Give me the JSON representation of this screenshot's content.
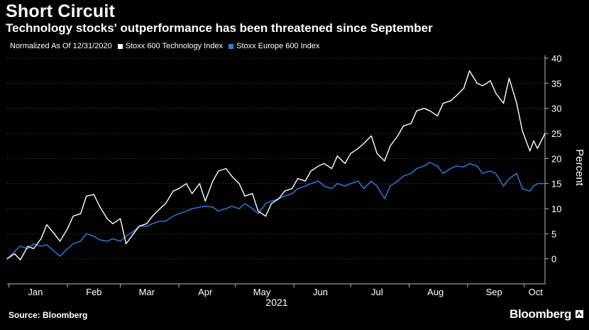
{
  "header": {
    "title": "Short Circuit",
    "subtitle": "Technology stocks' outperformance has been threatened since September"
  },
  "legend": {
    "note": "Normalized As Of 12/31/2020",
    "items": [
      {
        "label": "Stoxx 600 Technology Index",
        "color": "#ffffff"
      },
      {
        "label": "Stoxx Europe 600 Index",
        "color": "#2f7fe0"
      }
    ]
  },
  "footer": {
    "source": "Source: Bloomberg",
    "brand": "Bloomberg"
  },
  "chart_data": {
    "type": "line",
    "ylabel": "Percent",
    "xlabel": "2021",
    "x_tick_labels": [
      "Jan",
      "Feb",
      "Mar",
      "Apr",
      "May",
      "Jun",
      "Jul",
      "Aug",
      "Sep",
      "Oct"
    ],
    "y_ticks": [
      0,
      5,
      10,
      15,
      20,
      25,
      30,
      35,
      40
    ],
    "ylim": [
      -5,
      40
    ],
    "xlim": [
      "2020-12-31",
      "2021-10-12"
    ],
    "axis_side": "right",
    "grid": "horizontal dotted",
    "legend_position": "top-left",
    "series": [
      {
        "name": "Stoxx 600 Technology Index",
        "color": "#ffffff",
        "points": [
          [
            "2020-12-31",
            0
          ],
          [
            "2021-01-04",
            1
          ],
          [
            "2021-01-07",
            -0.2
          ],
          [
            "2021-01-11",
            2.5
          ],
          [
            "2021-01-14",
            2
          ],
          [
            "2021-01-18",
            4
          ],
          [
            "2021-01-21",
            6.8
          ],
          [
            "2021-01-25",
            5
          ],
          [
            "2021-01-28",
            3.5
          ],
          [
            "2021-02-01",
            6
          ],
          [
            "2021-02-04",
            8.5
          ],
          [
            "2021-02-08",
            9
          ],
          [
            "2021-02-11",
            12.5
          ],
          [
            "2021-02-15",
            12.8
          ],
          [
            "2021-02-18",
            10.5
          ],
          [
            "2021-02-22",
            8
          ],
          [
            "2021-02-25",
            7
          ],
          [
            "2021-03-01",
            8
          ],
          [
            "2021-03-04",
            3
          ],
          [
            "2021-03-08",
            5
          ],
          [
            "2021-03-11",
            6.5
          ],
          [
            "2021-03-15",
            7
          ],
          [
            "2021-03-18",
            8.5
          ],
          [
            "2021-03-22",
            10
          ],
          [
            "2021-03-25",
            11
          ],
          [
            "2021-03-29",
            13.5
          ],
          [
            "2021-04-01",
            14
          ],
          [
            "2021-04-05",
            15
          ],
          [
            "2021-04-08",
            13
          ],
          [
            "2021-04-12",
            15
          ],
          [
            "2021-04-15",
            11.5
          ],
          [
            "2021-04-19",
            15.5
          ],
          [
            "2021-04-22",
            17.5
          ],
          [
            "2021-04-26",
            18
          ],
          [
            "2021-04-29",
            16.5
          ],
          [
            "2021-05-03",
            15
          ],
          [
            "2021-05-06",
            12.5
          ],
          [
            "2021-05-10",
            13
          ],
          [
            "2021-05-13",
            9.5
          ],
          [
            "2021-05-17",
            8.5
          ],
          [
            "2021-05-20",
            11
          ],
          [
            "2021-05-24",
            12
          ],
          [
            "2021-05-27",
            13.5
          ],
          [
            "2021-05-31",
            14
          ],
          [
            "2021-06-03",
            16
          ],
          [
            "2021-06-07",
            15.5
          ],
          [
            "2021-06-10",
            17.5
          ],
          [
            "2021-06-14",
            18.5
          ],
          [
            "2021-06-17",
            19
          ],
          [
            "2021-06-21",
            18
          ],
          [
            "2021-06-24",
            20.5
          ],
          [
            "2021-06-28",
            19
          ],
          [
            "2021-07-01",
            21
          ],
          [
            "2021-07-05",
            22
          ],
          [
            "2021-07-08",
            23
          ],
          [
            "2021-07-12",
            24.5
          ],
          [
            "2021-07-15",
            21
          ],
          [
            "2021-07-19",
            19.5
          ],
          [
            "2021-07-22",
            22.5
          ],
          [
            "2021-07-26",
            24.5
          ],
          [
            "2021-07-29",
            26.5
          ],
          [
            "2021-08-02",
            27
          ],
          [
            "2021-08-05",
            29.5
          ],
          [
            "2021-08-09",
            30
          ],
          [
            "2021-08-12",
            29.5
          ],
          [
            "2021-08-16",
            28.5
          ],
          [
            "2021-08-19",
            31
          ],
          [
            "2021-08-23",
            31.5
          ],
          [
            "2021-08-26",
            32.5
          ],
          [
            "2021-08-30",
            34
          ],
          [
            "2021-09-02",
            37.5
          ],
          [
            "2021-09-06",
            35
          ],
          [
            "2021-09-09",
            34.5
          ],
          [
            "2021-09-13",
            35.5
          ],
          [
            "2021-09-16",
            33
          ],
          [
            "2021-09-20",
            31
          ],
          [
            "2021-09-23",
            36
          ],
          [
            "2021-09-27",
            31
          ],
          [
            "2021-09-30",
            25.5
          ],
          [
            "2021-10-04",
            21.5
          ],
          [
            "2021-10-06",
            23.5
          ],
          [
            "2021-10-08",
            22
          ],
          [
            "2021-10-12",
            25
          ]
        ]
      },
      {
        "name": "Stoxx Europe 600 Index",
        "color": "#2f7fe0",
        "points": [
          [
            "2020-12-31",
            0
          ],
          [
            "2021-01-04",
            1.5
          ],
          [
            "2021-01-07",
            2.5
          ],
          [
            "2021-01-11",
            2
          ],
          [
            "2021-01-14",
            3
          ],
          [
            "2021-01-18",
            2.5
          ],
          [
            "2021-01-21",
            2.8
          ],
          [
            "2021-01-25",
            1.5
          ],
          [
            "2021-01-28",
            0.5
          ],
          [
            "2021-02-01",
            2
          ],
          [
            "2021-02-04",
            3
          ],
          [
            "2021-02-08",
            3.5
          ],
          [
            "2021-02-11",
            5
          ],
          [
            "2021-02-15",
            4.5
          ],
          [
            "2021-02-18",
            3.8
          ],
          [
            "2021-02-22",
            3.5
          ],
          [
            "2021-02-25",
            4
          ],
          [
            "2021-03-01",
            3.5
          ],
          [
            "2021-03-04",
            4.5
          ],
          [
            "2021-03-08",
            5.5
          ],
          [
            "2021-03-11",
            6.5
          ],
          [
            "2021-03-15",
            6.5
          ],
          [
            "2021-03-18",
            7
          ],
          [
            "2021-03-22",
            7.5
          ],
          [
            "2021-03-25",
            7.5
          ],
          [
            "2021-03-29",
            8.5
          ],
          [
            "2021-04-01",
            9
          ],
          [
            "2021-04-05",
            9.5
          ],
          [
            "2021-04-08",
            10
          ],
          [
            "2021-04-12",
            10.3
          ],
          [
            "2021-04-15",
            10.5
          ],
          [
            "2021-04-19",
            10.3
          ],
          [
            "2021-04-22",
            9.5
          ],
          [
            "2021-04-26",
            10
          ],
          [
            "2021-04-29",
            10.5
          ],
          [
            "2021-05-03",
            10
          ],
          [
            "2021-05-06",
            11
          ],
          [
            "2021-05-10",
            10
          ],
          [
            "2021-05-13",
            9
          ],
          [
            "2021-05-17",
            11
          ],
          [
            "2021-05-20",
            11.5
          ],
          [
            "2021-05-24",
            12
          ],
          [
            "2021-05-27",
            12.5
          ],
          [
            "2021-05-31",
            13
          ],
          [
            "2021-06-03",
            14
          ],
          [
            "2021-06-07",
            14.5
          ],
          [
            "2021-06-10",
            15
          ],
          [
            "2021-06-14",
            15.5
          ],
          [
            "2021-06-17",
            14.5
          ],
          [
            "2021-06-21",
            14
          ],
          [
            "2021-06-24",
            15
          ],
          [
            "2021-06-28",
            14.5
          ],
          [
            "2021-07-01",
            15
          ],
          [
            "2021-07-05",
            15.5
          ],
          [
            "2021-07-08",
            14
          ],
          [
            "2021-07-12",
            15.5
          ],
          [
            "2021-07-15",
            14.5
          ],
          [
            "2021-07-19",
            12
          ],
          [
            "2021-07-22",
            14.5
          ],
          [
            "2021-07-26",
            15.5
          ],
          [
            "2021-07-29",
            16.5
          ],
          [
            "2021-08-02",
            17
          ],
          [
            "2021-08-05",
            18
          ],
          [
            "2021-08-09",
            18.5
          ],
          [
            "2021-08-12",
            19.2
          ],
          [
            "2021-08-16",
            18.5
          ],
          [
            "2021-08-19",
            17
          ],
          [
            "2021-08-23",
            18
          ],
          [
            "2021-08-26",
            18.5
          ],
          [
            "2021-08-30",
            18.3
          ],
          [
            "2021-09-02",
            19
          ],
          [
            "2021-09-06",
            18.5
          ],
          [
            "2021-09-09",
            17
          ],
          [
            "2021-09-13",
            17.5
          ],
          [
            "2021-09-16",
            17
          ],
          [
            "2021-09-20",
            14.5
          ],
          [
            "2021-09-23",
            16
          ],
          [
            "2021-09-27",
            17
          ],
          [
            "2021-09-30",
            14
          ],
          [
            "2021-10-04",
            13.5
          ],
          [
            "2021-10-06",
            14.5
          ],
          [
            "2021-10-08",
            15
          ],
          [
            "2021-10-12",
            15
          ]
        ]
      }
    ]
  }
}
